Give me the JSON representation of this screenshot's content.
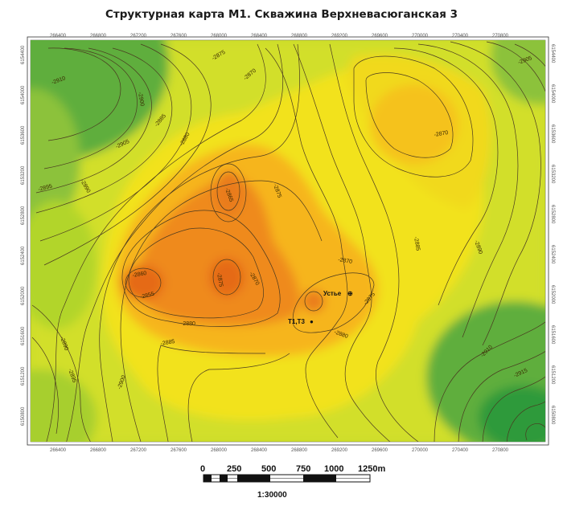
{
  "map": {
    "title": "Структурная карта М1. Скважина Верхневасюганская 3",
    "x_ticks": [
      "266400",
      "266800",
      "267200",
      "267600",
      "268000",
      "268400",
      "268800",
      "269200",
      "269600",
      "270000",
      "270400",
      "270800"
    ],
    "x_ticks_bottom": [
      "266400",
      "266800",
      "267200",
      "267600",
      "268000",
      "268400",
      "268800",
      "269200",
      "269600",
      "270000",
      "270400",
      "270800"
    ],
    "y_ticks": [
      "6154400",
      "6154000",
      "6153600",
      "6153200",
      "6152800",
      "6152400",
      "6152000",
      "6151600",
      "6151200",
      "6150800"
    ],
    "contours": {
      "-2910": {
        "type": "contour"
      },
      "-2905": {
        "type": "contour"
      },
      "-2900": {
        "type": "contour"
      },
      "-2895": {
        "type": "contour"
      },
      "-2890": {
        "type": "contour"
      },
      "-2885": {
        "type": "contour"
      },
      "-2880": {
        "type": "contour"
      },
      "-2875": {
        "type": "contour"
      },
      "-2870": {
        "type": "contour"
      },
      "-2865": {
        "type": "contour"
      },
      "-2860": {
        "type": "contour"
      },
      "-2855": {
        "type": "contour"
      }
    },
    "contour_labels": [
      {
        "text": "-2910"
      },
      {
        "text": "-2905"
      },
      {
        "text": "-2900"
      },
      {
        "text": "-2895"
      },
      {
        "text": "-2890"
      },
      {
        "text": "-2885"
      },
      {
        "text": "-2880"
      },
      {
        "text": "-2875"
      },
      {
        "text": "-2870"
      },
      {
        "text": "-2865"
      },
      {
        "text": "-2860"
      },
      {
        "text": "-2855"
      },
      {
        "text": "-2875"
      },
      {
        "text": "-2870"
      },
      {
        "text": "-2880"
      },
      {
        "text": "-2885"
      },
      {
        "text": "-2890"
      },
      {
        "text": "-2895"
      },
      {
        "text": "-2900"
      },
      {
        "text": "-2905"
      },
      {
        "text": "-2875"
      },
      {
        "text": "-2870"
      },
      {
        "text": "-2870"
      },
      {
        "text": "-2875"
      },
      {
        "text": "-2880"
      },
      {
        "text": "-2885"
      },
      {
        "text": "-2890"
      },
      {
        "text": "-2905"
      },
      {
        "text": "-2910"
      },
      {
        "text": "-2915"
      }
    ],
    "wells": [
      {
        "label": "Устье",
        "symbol": "⊕"
      },
      {
        "label": "Т1,Т3",
        "symbol": "●"
      }
    ],
    "colors": {
      "deep_green": "#2e9a3a",
      "green": "#7cc043",
      "yellow_green": "#c8dd2a",
      "yellow": "#f2e21a",
      "light_orange": "#f6b51c",
      "orange": "#ef8a1c",
      "dark_orange": "#e56a19",
      "contour_line": "#4a3a20"
    }
  },
  "scale_bar": {
    "labels": [
      "0",
      "250",
      "500",
      "750",
      "1000",
      "1250m"
    ],
    "ratio": "1:30000"
  }
}
